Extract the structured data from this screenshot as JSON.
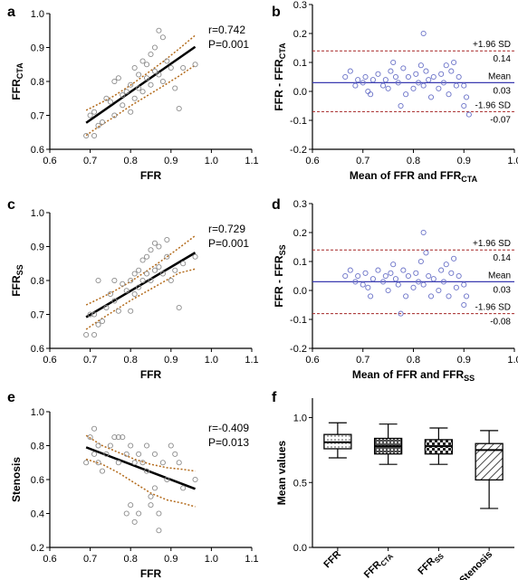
{
  "chart_data": [
    {
      "panel": "a",
      "type": "scatter",
      "xlabel": "FFR",
      "ylabel": "FFR",
      "ylabel_sub": "CTA",
      "xlim": [
        0.6,
        1.1
      ],
      "ylim": [
        0.6,
        1.0
      ],
      "xticks": [
        "0.6",
        "0.7",
        "0.8",
        "0.9",
        "1.0",
        "1.1"
      ],
      "yticks": [
        "0.6",
        "0.7",
        "0.8",
        "0.9",
        "1.0"
      ],
      "stats": [
        "r=0.742",
        "P=0.001"
      ],
      "regression": [
        [
          0.69,
          0.678
        ],
        [
          0.96,
          0.902
        ]
      ],
      "ci_upper": [
        [
          0.69,
          0.715
        ],
        [
          0.72,
          0.733
        ],
        [
          0.76,
          0.758
        ],
        [
          0.8,
          0.789
        ],
        [
          0.84,
          0.823
        ],
        [
          0.88,
          0.858
        ],
        [
          0.92,
          0.896
        ],
        [
          0.96,
          0.936
        ]
      ],
      "ci_lower": [
        [
          0.69,
          0.641
        ],
        [
          0.72,
          0.666
        ],
        [
          0.76,
          0.696
        ],
        [
          0.8,
          0.728
        ],
        [
          0.84,
          0.757
        ],
        [
          0.88,
          0.786
        ],
        [
          0.92,
          0.816
        ],
        [
          0.96,
          0.848
        ]
      ],
      "points": [
        [
          0.69,
          0.64
        ],
        [
          0.7,
          0.7
        ],
        [
          0.71,
          0.64
        ],
        [
          0.71,
          0.71
        ],
        [
          0.72,
          0.67
        ],
        [
          0.73,
          0.68
        ],
        [
          0.74,
          0.75
        ],
        [
          0.75,
          0.74
        ],
        [
          0.76,
          0.7
        ],
        [
          0.76,
          0.8
        ],
        [
          0.77,
          0.81
        ],
        [
          0.78,
          0.73
        ],
        [
          0.78,
          0.76
        ],
        [
          0.79,
          0.77
        ],
        [
          0.8,
          0.71
        ],
        [
          0.8,
          0.79
        ],
        [
          0.81,
          0.75
        ],
        [
          0.81,
          0.84
        ],
        [
          0.82,
          0.78
        ],
        [
          0.82,
          0.82
        ],
        [
          0.83,
          0.86
        ],
        [
          0.83,
          0.77
        ],
        [
          0.84,
          0.85
        ],
        [
          0.84,
          0.81
        ],
        [
          0.85,
          0.79
        ],
        [
          0.85,
          0.88
        ],
        [
          0.86,
          0.83
        ],
        [
          0.86,
          0.9
        ],
        [
          0.87,
          0.95
        ],
        [
          0.87,
          0.82
        ],
        [
          0.88,
          0.8
        ],
        [
          0.88,
          0.93
        ],
        [
          0.89,
          0.86
        ],
        [
          0.9,
          0.84
        ],
        [
          0.91,
          0.78
        ],
        [
          0.92,
          0.72
        ],
        [
          0.93,
          0.84
        ],
        [
          0.96,
          0.85
        ]
      ]
    },
    {
      "panel": "b",
      "type": "scatter",
      "xlabel": "Mean of FFR and FFR",
      "xlabel_sub": "CTA",
      "ylabel": "FFR - FFR",
      "ylabel_sub": "CTA",
      "xlim": [
        0.6,
        1.0
      ],
      "ylim": [
        -0.2,
        0.3
      ],
      "xticks": [
        "0.6",
        "0.7",
        "0.8",
        "0.9",
        "1.0"
      ],
      "yticks": [
        "-0.2",
        "-0.1",
        "0.0",
        "0.1",
        "0.2",
        "0.3"
      ],
      "mean_line": 0.03,
      "upper_sd": 0.14,
      "lower_sd": -0.07,
      "labels": {
        "upper": "+1.96 SD",
        "upper_value": "0.14",
        "mean": "Mean",
        "mean_value": "0.03",
        "lower": "-1.96 SD",
        "lower_value": "-0.07"
      },
      "points": [
        [
          0.665,
          0.05
        ],
        [
          0.675,
          0.07
        ],
        [
          0.685,
          0.02
        ],
        [
          0.69,
          0.04
        ],
        [
          0.7,
          0.03
        ],
        [
          0.705,
          0.05
        ],
        [
          0.71,
          0.0
        ],
        [
          0.715,
          -0.01
        ],
        [
          0.72,
          0.04
        ],
        [
          0.73,
          0.06
        ],
        [
          0.74,
          0.02
        ],
        [
          0.745,
          0.04
        ],
        [
          0.75,
          0.01
        ],
        [
          0.755,
          0.07
        ],
        [
          0.76,
          0.1
        ],
        [
          0.765,
          0.05
        ],
        [
          0.77,
          0.03
        ],
        [
          0.775,
          -0.05
        ],
        [
          0.78,
          0.08
        ],
        [
          0.785,
          -0.01
        ],
        [
          0.79,
          0.05
        ],
        [
          0.8,
          0.01
        ],
        [
          0.805,
          0.06
        ],
        [
          0.81,
          0.03
        ],
        [
          0.815,
          0.09
        ],
        [
          0.82,
          0.02
        ],
        [
          0.82,
          0.2
        ],
        [
          0.825,
          0.07
        ],
        [
          0.83,
          0.04
        ],
        [
          0.835,
          -0.02
        ],
        [
          0.84,
          0.05
        ],
        [
          0.85,
          0.01
        ],
        [
          0.855,
          0.06
        ],
        [
          0.86,
          0.03
        ],
        [
          0.865,
          0.09
        ],
        [
          0.87,
          -0.01
        ],
        [
          0.875,
          0.07
        ],
        [
          0.88,
          0.1
        ],
        [
          0.885,
          0.02
        ],
        [
          0.89,
          0.05
        ],
        [
          0.9,
          0.02
        ],
        [
          0.9,
          -0.05
        ],
        [
          0.905,
          -0.02
        ],
        [
          0.91,
          -0.08
        ]
      ]
    },
    {
      "panel": "c",
      "type": "scatter",
      "xlabel": "FFR",
      "ylabel": "FFR",
      "ylabel_sub": "SS",
      "xlim": [
        0.6,
        1.1
      ],
      "ylim": [
        0.6,
        1.0
      ],
      "xticks": [
        "0.6",
        "0.7",
        "0.8",
        "0.9",
        "1.0",
        "1.1"
      ],
      "yticks": [
        "0.6",
        "0.7",
        "0.8",
        "0.9",
        "1.0"
      ],
      "stats": [
        "r=0.729",
        "P=0.001"
      ],
      "regression": [
        [
          0.69,
          0.692
        ],
        [
          0.96,
          0.882
        ]
      ],
      "ci_upper": [
        [
          0.69,
          0.728
        ],
        [
          0.72,
          0.745
        ],
        [
          0.76,
          0.769
        ],
        [
          0.8,
          0.797
        ],
        [
          0.84,
          0.828
        ],
        [
          0.88,
          0.861
        ],
        [
          0.92,
          0.896
        ],
        [
          0.96,
          0.932
        ]
      ],
      "ci_lower": [
        [
          0.69,
          0.656
        ],
        [
          0.72,
          0.681
        ],
        [
          0.76,
          0.711
        ],
        [
          0.8,
          0.741
        ],
        [
          0.84,
          0.768
        ],
        [
          0.88,
          0.795
        ],
        [
          0.92,
          0.822
        ],
        [
          0.96,
          0.834
        ]
      ],
      "points": [
        [
          0.69,
          0.64
        ],
        [
          0.7,
          0.7
        ],
        [
          0.71,
          0.64
        ],
        [
          0.71,
          0.7
        ],
        [
          0.72,
          0.67
        ],
        [
          0.72,
          0.8
        ],
        [
          0.73,
          0.68
        ],
        [
          0.74,
          0.72
        ],
        [
          0.75,
          0.76
        ],
        [
          0.76,
          0.74
        ],
        [
          0.76,
          0.8
        ],
        [
          0.77,
          0.71
        ],
        [
          0.78,
          0.79
        ],
        [
          0.79,
          0.77
        ],
        [
          0.8,
          0.71
        ],
        [
          0.8,
          0.8
        ],
        [
          0.81,
          0.82
        ],
        [
          0.81,
          0.76
        ],
        [
          0.82,
          0.83
        ],
        [
          0.82,
          0.78
        ],
        [
          0.83,
          0.86
        ],
        [
          0.83,
          0.8
        ],
        [
          0.84,
          0.87
        ],
        [
          0.84,
          0.82
        ],
        [
          0.85,
          0.8
        ],
        [
          0.85,
          0.89
        ],
        [
          0.86,
          0.83
        ],
        [
          0.86,
          0.91
        ],
        [
          0.87,
          0.9
        ],
        [
          0.87,
          0.84
        ],
        [
          0.88,
          0.82
        ],
        [
          0.89,
          0.87
        ],
        [
          0.89,
          0.92
        ],
        [
          0.9,
          0.8
        ],
        [
          0.91,
          0.83
        ],
        [
          0.92,
          0.72
        ],
        [
          0.93,
          0.85
        ],
        [
          0.96,
          0.87
        ]
      ]
    },
    {
      "panel": "d",
      "type": "scatter",
      "xlabel": "Mean of FFR and FFR",
      "xlabel_sub": "SS",
      "ylabel": "FFR - FFR",
      "ylabel_sub": "SS",
      "xlim": [
        0.6,
        1.0
      ],
      "ylim": [
        -0.2,
        0.3
      ],
      "xticks": [
        "0.6",
        "0.7",
        "0.8",
        "0.9",
        "1.0"
      ],
      "yticks": [
        "-0.2",
        "-0.1",
        "0.0",
        "0.1",
        "0.2",
        "0.3"
      ],
      "mean_line": 0.03,
      "upper_sd": 0.14,
      "lower_sd": -0.08,
      "labels": {
        "upper": "+1.96 SD",
        "upper_value": "0.14",
        "mean": "Mean",
        "mean_value": "0.03",
        "lower": "-1.96 SD",
        "lower_value": "-0.08"
      },
      "points": [
        [
          0.665,
          0.05
        ],
        [
          0.675,
          0.07
        ],
        [
          0.685,
          0.03
        ],
        [
          0.69,
          0.05
        ],
        [
          0.7,
          0.02
        ],
        [
          0.705,
          0.06
        ],
        [
          0.71,
          0.01
        ],
        [
          0.715,
          -0.02
        ],
        [
          0.72,
          0.04
        ],
        [
          0.73,
          0.07
        ],
        [
          0.74,
          0.03
        ],
        [
          0.745,
          0.05
        ],
        [
          0.75,
          0.0
        ],
        [
          0.755,
          0.06
        ],
        [
          0.76,
          0.09
        ],
        [
          0.765,
          0.04
        ],
        [
          0.77,
          0.02
        ],
        [
          0.775,
          -0.08
        ],
        [
          0.78,
          0.07
        ],
        [
          0.785,
          -0.02
        ],
        [
          0.79,
          0.05
        ],
        [
          0.8,
          0.01
        ],
        [
          0.805,
          0.06
        ],
        [
          0.81,
          0.03
        ],
        [
          0.815,
          0.1
        ],
        [
          0.82,
          0.02
        ],
        [
          0.82,
          0.2
        ],
        [
          0.825,
          0.13
        ],
        [
          0.83,
          0.05
        ],
        [
          0.835,
          -0.02
        ],
        [
          0.84,
          0.04
        ],
        [
          0.85,
          0.0
        ],
        [
          0.855,
          0.07
        ],
        [
          0.86,
          0.03
        ],
        [
          0.865,
          0.09
        ],
        [
          0.87,
          -0.02
        ],
        [
          0.875,
          0.06
        ],
        [
          0.88,
          0.11
        ],
        [
          0.885,
          0.01
        ],
        [
          0.89,
          0.05
        ],
        [
          0.9,
          0.02
        ],
        [
          0.9,
          -0.05
        ],
        [
          0.905,
          -0.02
        ]
      ]
    },
    {
      "panel": "e",
      "type": "scatter",
      "xlabel": "FFR",
      "ylabel": "Stenosis",
      "xlim": [
        0.6,
        1.1
      ],
      "ylim": [
        0.2,
        1.0
      ],
      "xticks": [
        "0.6",
        "0.7",
        "0.8",
        "0.9",
        "1.0",
        "1.1"
      ],
      "yticks": [
        "0.2",
        "0.4",
        "0.6",
        "0.8",
        "1.0"
      ],
      "stats": [
        "r=-0.409",
        "P=0.013"
      ],
      "regression": [
        [
          0.69,
          0.79
        ],
        [
          0.96,
          0.545
        ]
      ],
      "ci_upper": [
        [
          0.69,
          0.86
        ],
        [
          0.73,
          0.8
        ],
        [
          0.77,
          0.76
        ],
        [
          0.81,
          0.72
        ],
        [
          0.85,
          0.69
        ],
        [
          0.89,
          0.67
        ],
        [
          0.93,
          0.66
        ],
        [
          0.96,
          0.65
        ]
      ],
      "ci_lower": [
        [
          0.69,
          0.72
        ],
        [
          0.73,
          0.69
        ],
        [
          0.77,
          0.64
        ],
        [
          0.81,
          0.58
        ],
        [
          0.85,
          0.52
        ],
        [
          0.89,
          0.48
        ],
        [
          0.93,
          0.46
        ],
        [
          0.96,
          0.44
        ]
      ],
      "points": [
        [
          0.69,
          0.7
        ],
        [
          0.7,
          0.85
        ],
        [
          0.71,
          0.75
        ],
        [
          0.71,
          0.9
        ],
        [
          0.72,
          0.8
        ],
        [
          0.72,
          0.7
        ],
        [
          0.73,
          0.65
        ],
        [
          0.74,
          0.75
        ],
        [
          0.75,
          0.8
        ],
        [
          0.76,
          0.85
        ],
        [
          0.77,
          0.85
        ],
        [
          0.77,
          0.7
        ],
        [
          0.78,
          0.85
        ],
        [
          0.79,
          0.75
        ],
        [
          0.79,
          0.4
        ],
        [
          0.8,
          0.8
        ],
        [
          0.8,
          0.45
        ],
        [
          0.81,
          0.7
        ],
        [
          0.81,
          0.35
        ],
        [
          0.82,
          0.75
        ],
        [
          0.82,
          0.4
        ],
        [
          0.83,
          0.7
        ],
        [
          0.84,
          0.65
        ],
        [
          0.84,
          0.8
        ],
        [
          0.85,
          0.5
        ],
        [
          0.85,
          0.45
        ],
        [
          0.86,
          0.75
        ],
        [
          0.86,
          0.55
        ],
        [
          0.87,
          0.3
        ],
        [
          0.87,
          0.4
        ],
        [
          0.88,
          0.7
        ],
        [
          0.89,
          0.6
        ],
        [
          0.9,
          0.8
        ],
        [
          0.91,
          0.75
        ],
        [
          0.92,
          0.7
        ],
        [
          0.93,
          0.55
        ],
        [
          0.96,
          0.6
        ]
      ]
    },
    {
      "panel": "f",
      "type": "box",
      "ylabel": "Mean values",
      "ylim": [
        0.0,
        1.15
      ],
      "yticks": [
        "0.0",
        "0.5",
        "1.0"
      ],
      "categories": [
        {
          "label": "FFR",
          "sub": "",
          "min": 0.69,
          "q1": 0.76,
          "median": 0.81,
          "q3": 0.87,
          "max": 0.96,
          "fill": "dots"
        },
        {
          "label": "FFR",
          "sub": "CTA",
          "min": 0.64,
          "q1": 0.72,
          "median": 0.78,
          "q3": 0.84,
          "max": 0.95,
          "fill": "grid"
        },
        {
          "label": "FFR",
          "sub": "SS",
          "min": 0.64,
          "q1": 0.72,
          "median": 0.78,
          "q3": 0.83,
          "max": 0.92,
          "fill": "checker"
        },
        {
          "label": "Stenosis",
          "sub": "",
          "min": 0.3,
          "q1": 0.52,
          "median": 0.75,
          "q3": 0.8,
          "max": 0.9,
          "fill": "hatch"
        }
      ]
    }
  ],
  "colors": {
    "points": "#8c8c8c",
    "ba_points": "#6b73c8",
    "ci": "#b36a1a",
    "sd_line": "#a52525",
    "mean_line": "#3a3ab0"
  }
}
